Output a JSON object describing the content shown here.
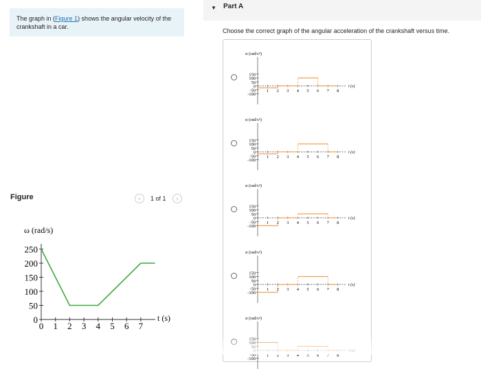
{
  "intro": {
    "text_before": "The graph in (",
    "link": "Figure 1",
    "text_after": ") shows the angular velocity of the crankshaft in a car."
  },
  "figure": {
    "title": "Figure",
    "pager_label": "1 of 1",
    "prev_icon": "chevron-left-icon",
    "next_icon": "chevron-right-icon"
  },
  "part": {
    "title": "Part A",
    "toggle_icon": "caret-down-icon",
    "question": "Choose the correct graph of the angular acceleration of the crankshaft versus time."
  },
  "colors": {
    "velocity_line": "#3aa83a",
    "accel_line": "#f0a050",
    "link": "#1a6fb3"
  },
  "chart_data": [
    {
      "type": "line",
      "ylabel": "ω (rad/s)",
      "xlabel": "t (s)",
      "x_ticks": [
        "0",
        "1",
        "2",
        "3",
        "4",
        "5",
        "6",
        "7"
      ],
      "y_ticks": [
        "0",
        "50",
        "100",
        "150",
        "200",
        "250"
      ],
      "ylim": [
        0,
        250
      ],
      "series": [
        {
          "x": [
            0,
            2,
            4,
            7,
            8
          ],
          "y": [
            250,
            50,
            50,
            200,
            200
          ]
        }
      ]
    },
    {
      "type": "line",
      "ylabel": "α (rad/s²)",
      "xlabel": "t (s)",
      "x_ticks": [
        "1",
        "2",
        "3",
        "4",
        "5",
        "6",
        "7",
        "8"
      ],
      "y_ticks": [
        "150",
        "100",
        "50",
        "0",
        "-50",
        "-100"
      ],
      "segments": [
        {
          "x": [
            0,
            2
          ],
          "y": -25
        },
        {
          "x": [
            2,
            4
          ],
          "y": 0
        },
        {
          "x": [
            4,
            6
          ],
          "y": 100
        },
        {
          "x": [
            6,
            8
          ],
          "y": 0
        }
      ]
    },
    {
      "type": "line",
      "ylabel": "α (rad/s²)",
      "xlabel": "t (s)",
      "x_ticks": [
        "1",
        "2",
        "3",
        "4",
        "5",
        "6",
        "7",
        "8"
      ],
      "y_ticks": [
        "150",
        "100",
        "50",
        "0",
        "-50",
        "-100"
      ],
      "segments": [
        {
          "x": [
            0,
            2
          ],
          "y": -25
        },
        {
          "x": [
            2,
            4
          ],
          "y": 0
        },
        {
          "x": [
            4,
            7
          ],
          "y": 100
        },
        {
          "x": [
            7,
            8
          ],
          "y": 0
        }
      ]
    },
    {
      "type": "line",
      "ylabel": "α (rad/s²)",
      "xlabel": "t (s)",
      "x_ticks": [
        "1",
        "2",
        "3",
        "4",
        "5",
        "6",
        "7",
        "8"
      ],
      "y_ticks": [
        "150",
        "100",
        "50",
        "0",
        "-50",
        "-100"
      ],
      "segments": [
        {
          "x": [
            0,
            2
          ],
          "y": -100
        },
        {
          "x": [
            2,
            4
          ],
          "y": 0
        },
        {
          "x": [
            4,
            7
          ],
          "y": 50
        },
        {
          "x": [
            7,
            8
          ],
          "y": 0
        }
      ]
    },
    {
      "type": "line",
      "ylabel": "α (rad/s²)",
      "xlabel": "t (s)",
      "x_ticks": [
        "1",
        "2",
        "3",
        "4",
        "5",
        "6",
        "7",
        "8"
      ],
      "y_ticks": [
        "150",
        "100",
        "50",
        "0",
        "-50",
        "-100"
      ],
      "segments": [
        {
          "x": [
            0,
            2
          ],
          "y": -100
        },
        {
          "x": [
            2,
            4
          ],
          "y": 0
        },
        {
          "x": [
            4,
            7
          ],
          "y": 100
        },
        {
          "x": [
            7,
            8
          ],
          "y": 0
        }
      ]
    },
    {
      "type": "line",
      "ylabel": "α (rad/s²)",
      "xlabel": "t (s)",
      "x_ticks": [
        "1",
        "2",
        "3",
        "4",
        "5",
        "6",
        "7",
        "8"
      ],
      "y_ticks": [
        "150",
        "100",
        "50",
        "0",
        "-50",
        "-100"
      ],
      "segments": [
        {
          "x": [
            0,
            2
          ],
          "y": 100
        },
        {
          "x": [
            2,
            4
          ],
          "y": 0
        },
        {
          "x": [
            4,
            7
          ],
          "y": 50
        },
        {
          "x": [
            7,
            8
          ],
          "y": 0
        }
      ]
    }
  ]
}
